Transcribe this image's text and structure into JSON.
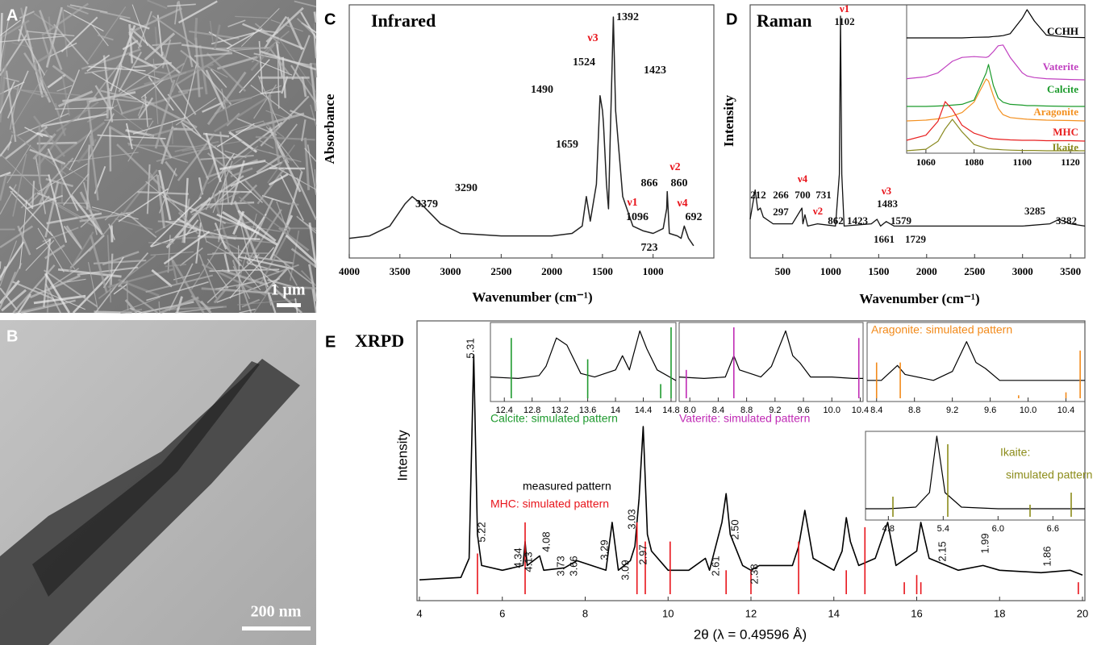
{
  "panels": {
    "A": {
      "label": "A",
      "scale": "1 μm"
    },
    "B": {
      "label": "B",
      "scale": "200 nm"
    }
  },
  "chart_data": [
    {
      "type": "line",
      "panel": "C",
      "title": "Infrared",
      "x_label": "Wavenumber (cm⁻¹)",
      "y_label": "Absorbance",
      "x": [
        4000,
        3800,
        3600,
        3450,
        3379,
        3290,
        3100,
        2900,
        2500,
        2000,
        1800,
        1700,
        1659,
        1620,
        1560,
        1524,
        1500,
        1490,
        1460,
        1440,
        1423,
        1392,
        1370,
        1300,
        1200,
        1096,
        1000,
        900,
        866,
        860,
        840,
        760,
        723,
        692,
        650,
        600
      ],
      "values": [
        0.08,
        0.09,
        0.13,
        0.22,
        0.25,
        0.22,
        0.14,
        0.1,
        0.09,
        0.09,
        0.1,
        0.13,
        0.25,
        0.15,
        0.3,
        0.66,
        0.6,
        0.55,
        0.3,
        0.2,
        0.5,
        0.98,
        0.6,
        0.25,
        0.13,
        0.11,
        0.1,
        0.12,
        0.2,
        0.27,
        0.1,
        0.09,
        0.08,
        0.13,
        0.08,
        0.05
      ],
      "color": "#222222",
      "xlim": [
        4000,
        400
      ],
      "ylim": [
        0,
        1
      ],
      "xticks": [
        4000,
        3500,
        3000,
        2500,
        2000,
        1500,
        1000
      ],
      "annotations": [
        {
          "text": "1392"
        },
        {
          "text": "ν3",
          "color": "#e8141b"
        },
        {
          "text": "1524"
        },
        {
          "text": "1423"
        },
        {
          "text": "1490"
        },
        {
          "text": "1659"
        },
        {
          "text": "3379"
        },
        {
          "text": "3290"
        },
        {
          "text": "ν2",
          "color": "#e8141b"
        },
        {
          "text": "866"
        },
        {
          "text": "860"
        },
        {
          "text": "ν1",
          "color": "#e8141b"
        },
        {
          "text": "1096"
        },
        {
          "text": "ν4",
          "color": "#e8141b"
        },
        {
          "text": "692"
        },
        {
          "text": "723"
        }
      ]
    },
    {
      "type": "line",
      "panel": "D",
      "title": "Raman",
      "x_label": "Wavenumber (cm⁻¹)",
      "y_label": "Intensity",
      "x": [
        160,
        212,
        240,
        266,
        297,
        400,
        600,
        700,
        710,
        731,
        760,
        862,
        1050,
        1090,
        1102,
        1115,
        1140,
        1423,
        1483,
        1520,
        1579,
        1661,
        1729,
        2500,
        3000,
        3285,
        3382,
        3500,
        3650
      ],
      "values": [
        0.1,
        0.23,
        0.14,
        0.15,
        0.11,
        0.08,
        0.08,
        0.15,
        0.08,
        0.12,
        0.07,
        0.08,
        0.07,
        0.3,
        1.0,
        0.3,
        0.07,
        0.08,
        0.1,
        0.07,
        0.09,
        0.07,
        0.07,
        0.07,
        0.07,
        0.08,
        0.1,
        0.08,
        0.07
      ],
      "color": "#111111",
      "xlim": [
        160,
        3650
      ],
      "ylim": [
        0,
        1
      ],
      "xticks": [
        500,
        1000,
        1500,
        2000,
        2500,
        3000,
        3500
      ],
      "annotations": [
        {
          "text": "ν1",
          "color": "#e8141b"
        },
        {
          "text": "1102"
        },
        {
          "text": "212"
        },
        {
          "text": "266"
        },
        {
          "text": "297"
        },
        {
          "text": "ν4",
          "color": "#e8141b"
        },
        {
          "text": "700"
        },
        {
          "text": "731"
        },
        {
          "text": "ν2",
          "color": "#e8141b"
        },
        {
          "text": "862"
        },
        {
          "text": "ν3",
          "color": "#e8141b"
        },
        {
          "text": "1483"
        },
        {
          "text": "1423"
        },
        {
          "text": "1579"
        },
        {
          "text": "1661"
        },
        {
          "text": "1729"
        },
        {
          "text": "3285"
        },
        {
          "text": "3382"
        }
      ]
    },
    {
      "type": "line",
      "x": [
        1052,
        1060,
        1065,
        1068,
        1071,
        1075,
        1080,
        1085,
        1086,
        1088,
        1090,
        1092,
        1095,
        1100,
        1102,
        1105,
        1110,
        1120,
        1126
      ],
      "xlim": [
        1052,
        1126
      ],
      "ylim": [
        0,
        1
      ],
      "xticks": [
        1060,
        1080,
        1100,
        1120
      ],
      "series": [
        {
          "name": "CCHH",
          "color": "#000000",
          "values": [
            0,
            0,
            0,
            0,
            0,
            0,
            0.02,
            0.03,
            0.03,
            0.05,
            0.06,
            0.08,
            0.15,
            0.7,
            1,
            0.6,
            0.1,
            0.02,
            0.01
          ]
        },
        {
          "name": "Vaterite",
          "color": "#c040c0",
          "values": [
            0.05,
            0.1,
            0.2,
            0.35,
            0.5,
            0.6,
            0.62,
            0.6,
            0.62,
            0.75,
            0.9,
            0.92,
            0.6,
            0.2,
            0.12,
            0.08,
            0.05,
            0.03,
            0.02
          ]
        },
        {
          "name": "Calcite",
          "color": "#1a9a2a",
          "values": [
            0,
            0,
            0.01,
            0.02,
            0.03,
            0.05,
            0.15,
            0.8,
            1,
            0.5,
            0.2,
            0.1,
            0.05,
            0.03,
            0.02,
            0.02,
            0.01,
            0,
            0
          ]
        },
        {
          "name": "Aragonite",
          "color": "#f39020",
          "values": [
            0,
            0.02,
            0.05,
            0.08,
            0.12,
            0.2,
            0.45,
            1,
            0.95,
            0.6,
            0.3,
            0.15,
            0.08,
            0.05,
            0.04,
            0.03,
            0.02,
            0.01,
            0
          ]
        },
        {
          "name": "MHC",
          "color": "#e82020",
          "values": [
            0.02,
            0.15,
            0.5,
            1,
            0.8,
            0.4,
            0.2,
            0.1,
            0.08,
            0.06,
            0.05,
            0.04,
            0.03,
            0.02,
            0.02,
            0.02,
            0.01,
            0.01,
            0
          ]
        },
        {
          "name": "Ikaite",
          "color": "#8a8a20",
          "values": [
            0,
            0.05,
            0.3,
            0.7,
            1,
            0.6,
            0.2,
            0.08,
            0.06,
            0.05,
            0.04,
            0.03,
            0.02,
            0.01,
            0.01,
            0.01,
            0,
            0,
            0
          ]
        }
      ]
    },
    {
      "type": "line",
      "panel": "E",
      "title": "XRPD",
      "x_label": "2θ (λ = 0.49596 Å)",
      "y_label": "Intensity",
      "xlim": [
        4,
        20
      ],
      "ylim": [
        0,
        1
      ],
      "xticks": [
        4,
        6,
        8,
        10,
        12,
        14,
        16,
        18,
        20
      ],
      "series": [
        {
          "name": "measured pattern",
          "color": "#000000",
          "x": [
            4,
            5,
            5.2,
            5.31,
            5.4,
            5.5,
            6,
            6.5,
            6.55,
            6.6,
            6.9,
            7,
            7.5,
            7.8,
            8.5,
            8.65,
            8.8,
            9.09,
            9.2,
            9.3,
            9.4,
            9.5,
            9.6,
            10,
            10.5,
            10.9,
            11,
            11.3,
            11.4,
            11.5,
            11.8,
            12,
            12.2,
            13,
            13.15,
            13.3,
            13.5,
            14,
            14.2,
            14.3,
            14.4,
            14.6,
            15,
            15.3,
            15.5,
            16,
            16.1,
            16.3,
            17,
            17.6,
            18,
            19,
            19.7,
            20
          ],
          "values": [
            0.06,
            0.07,
            0.15,
            1.0,
            0.25,
            0.12,
            0.1,
            0.12,
            0.22,
            0.12,
            0.16,
            0.1,
            0.11,
            0.14,
            0.1,
            0.3,
            0.1,
            0.14,
            0.2,
            0.4,
            0.7,
            0.25,
            0.18,
            0.1,
            0.1,
            0.15,
            0.1,
            0.3,
            0.42,
            0.25,
            0.12,
            0.1,
            0.12,
            0.12,
            0.2,
            0.35,
            0.15,
            0.1,
            0.18,
            0.32,
            0.22,
            0.12,
            0.15,
            0.3,
            0.12,
            0.18,
            0.3,
            0.15,
            0.1,
            0.12,
            0.1,
            0.09,
            0.1,
            0.08
          ]
        },
        {
          "name": "MHC: simulated pattern",
          "color": "#e8141b",
          "style": "sticks",
          "x": [
            5.4,
            6.55,
            9.25,
            9.45,
            10.05,
            11.4,
            12.0,
            13.15,
            14.3,
            14.75,
            15.7,
            16.0,
            16.1,
            19.9
          ],
          "values": [
            0.17,
            0.3,
            0.3,
            0.22,
            0.22,
            0.1,
            0.1,
            0.22,
            0.1,
            0.28,
            0.05,
            0.08,
            0.05,
            0.05
          ]
        }
      ],
      "annotations": [
        {
          "text": "5.31"
        },
        {
          "text": "5.22"
        },
        {
          "text": "4.34"
        },
        {
          "text": "4.13"
        },
        {
          "text": "4.08"
        },
        {
          "text": "3.73"
        },
        {
          "text": "3.66"
        },
        {
          "text": "3.29"
        },
        {
          "text": "3.09"
        },
        {
          "text": "3.03"
        },
        {
          "text": "2.97"
        },
        {
          "text": "2.61"
        },
        {
          "text": "2.50"
        },
        {
          "text": "2.38"
        },
        {
          "text": "2.15"
        },
        {
          "text": "1.99"
        },
        {
          "text": "1.86"
        }
      ]
    },
    {
      "type": "line",
      "xlim": [
        12.2,
        14.87
      ],
      "ylim": [
        0,
        1
      ],
      "xticks": [
        12.4,
        12.8,
        13.2,
        13.6,
        14.0,
        14.4,
        14.8
      ],
      "series": [
        {
          "color": "#000000",
          "x": [
            12.2,
            12.6,
            12.9,
            13.0,
            13.15,
            13.3,
            13.5,
            13.7,
            14.0,
            14.1,
            14.2,
            14.35,
            14.45,
            14.6,
            14.87
          ],
          "values": [
            0.3,
            0.28,
            0.32,
            0.45,
            0.85,
            0.75,
            0.35,
            0.3,
            0.4,
            0.6,
            0.4,
            0.95,
            0.7,
            0.4,
            0.25
          ]
        },
        {
          "name": "Calcite: simulated pattern",
          "color": "#1f9a2f",
          "style": "sticks",
          "x": [
            12.5,
            13.6,
            14.65,
            14.8
          ],
          "values": [
            0.85,
            0.55,
            0.2,
            1.0
          ]
        }
      ]
    },
    {
      "type": "line",
      "xlim": [
        7.85,
        10.44
      ],
      "ylim": [
        0,
        1
      ],
      "xticks": [
        {
          "value": 8.0,
          "label": "8.0"
        },
        8.4,
        8.8,
        9.2,
        9.6,
        {
          "value": 10.0,
          "label": "10.0"
        },
        10.4
      ],
      "series": [
        {
          "color": "#000000",
          "x": [
            7.85,
            8.2,
            8.5,
            8.62,
            8.7,
            9.0,
            9.15,
            9.35,
            9.45,
            9.55,
            9.7,
            10.0,
            10.3,
            10.44
          ],
          "values": [
            0.3,
            0.28,
            0.3,
            0.6,
            0.4,
            0.3,
            0.45,
            0.95,
            0.6,
            0.5,
            0.3,
            0.3,
            0.28,
            0.28
          ]
        },
        {
          "name": "Vaterite: simulated pattern",
          "color": "#c02bb5",
          "style": "sticks",
          "x": [
            7.95,
            8.62,
            10.38
          ],
          "values": [
            0.4,
            1.0,
            0.85
          ]
        }
      ]
    },
    {
      "type": "line",
      "xlim": [
        8.3,
        10.6
      ],
      "ylim": [
        0,
        1
      ],
      "xticks": [
        8.4,
        8.8,
        9.2,
        9.6,
        {
          "value": 10.0,
          "label": "10.0"
        },
        10.4
      ],
      "series": [
        {
          "color": "#000000",
          "x": [
            8.3,
            8.45,
            8.62,
            8.7,
            9.0,
            9.2,
            9.35,
            9.45,
            9.55,
            9.7,
            10.0,
            10.4,
            10.6
          ],
          "values": [
            0.3,
            0.3,
            0.55,
            0.4,
            0.3,
            0.45,
            0.95,
            0.6,
            0.5,
            0.3,
            0.3,
            0.3,
            0.3
          ]
        },
        {
          "name": "Aragonite: simulated pattern",
          "color": "#f28a1a",
          "style": "sticks",
          "x": [
            8.4,
            8.65,
            9.9,
            10.4,
            10.55
          ],
          "values": [
            0.6,
            0.6,
            0.05,
            0.1,
            0.8
          ]
        }
      ]
    },
    {
      "type": "line",
      "xlim": [
        4.55,
        6.95
      ],
      "ylim": [
        0,
        1
      ],
      "xticks": [
        4.8,
        5.4,
        {
          "value": 6.0,
          "label": "6.0"
        },
        6.6
      ],
      "caption": [
        "Ikaite:",
        "simulated pattern"
      ],
      "caption_color": "#8c8c1a",
      "series": [
        {
          "color": "#000000",
          "x": [
            4.55,
            4.8,
            5.1,
            5.25,
            5.33,
            5.42,
            5.6,
            6.0,
            6.4,
            6.8,
            6.95
          ],
          "values": [
            0.1,
            0.1,
            0.12,
            0.3,
            1.0,
            0.3,
            0.12,
            0.1,
            0.1,
            0.1,
            0.1
          ]
        },
        {
          "color": "#8c8c1a",
          "style": "sticks",
          "x": [
            4.85,
            5.45,
            6.35,
            6.8
          ],
          "values": [
            0.25,
            0.9,
            0.15,
            0.3
          ]
        }
      ]
    }
  ]
}
